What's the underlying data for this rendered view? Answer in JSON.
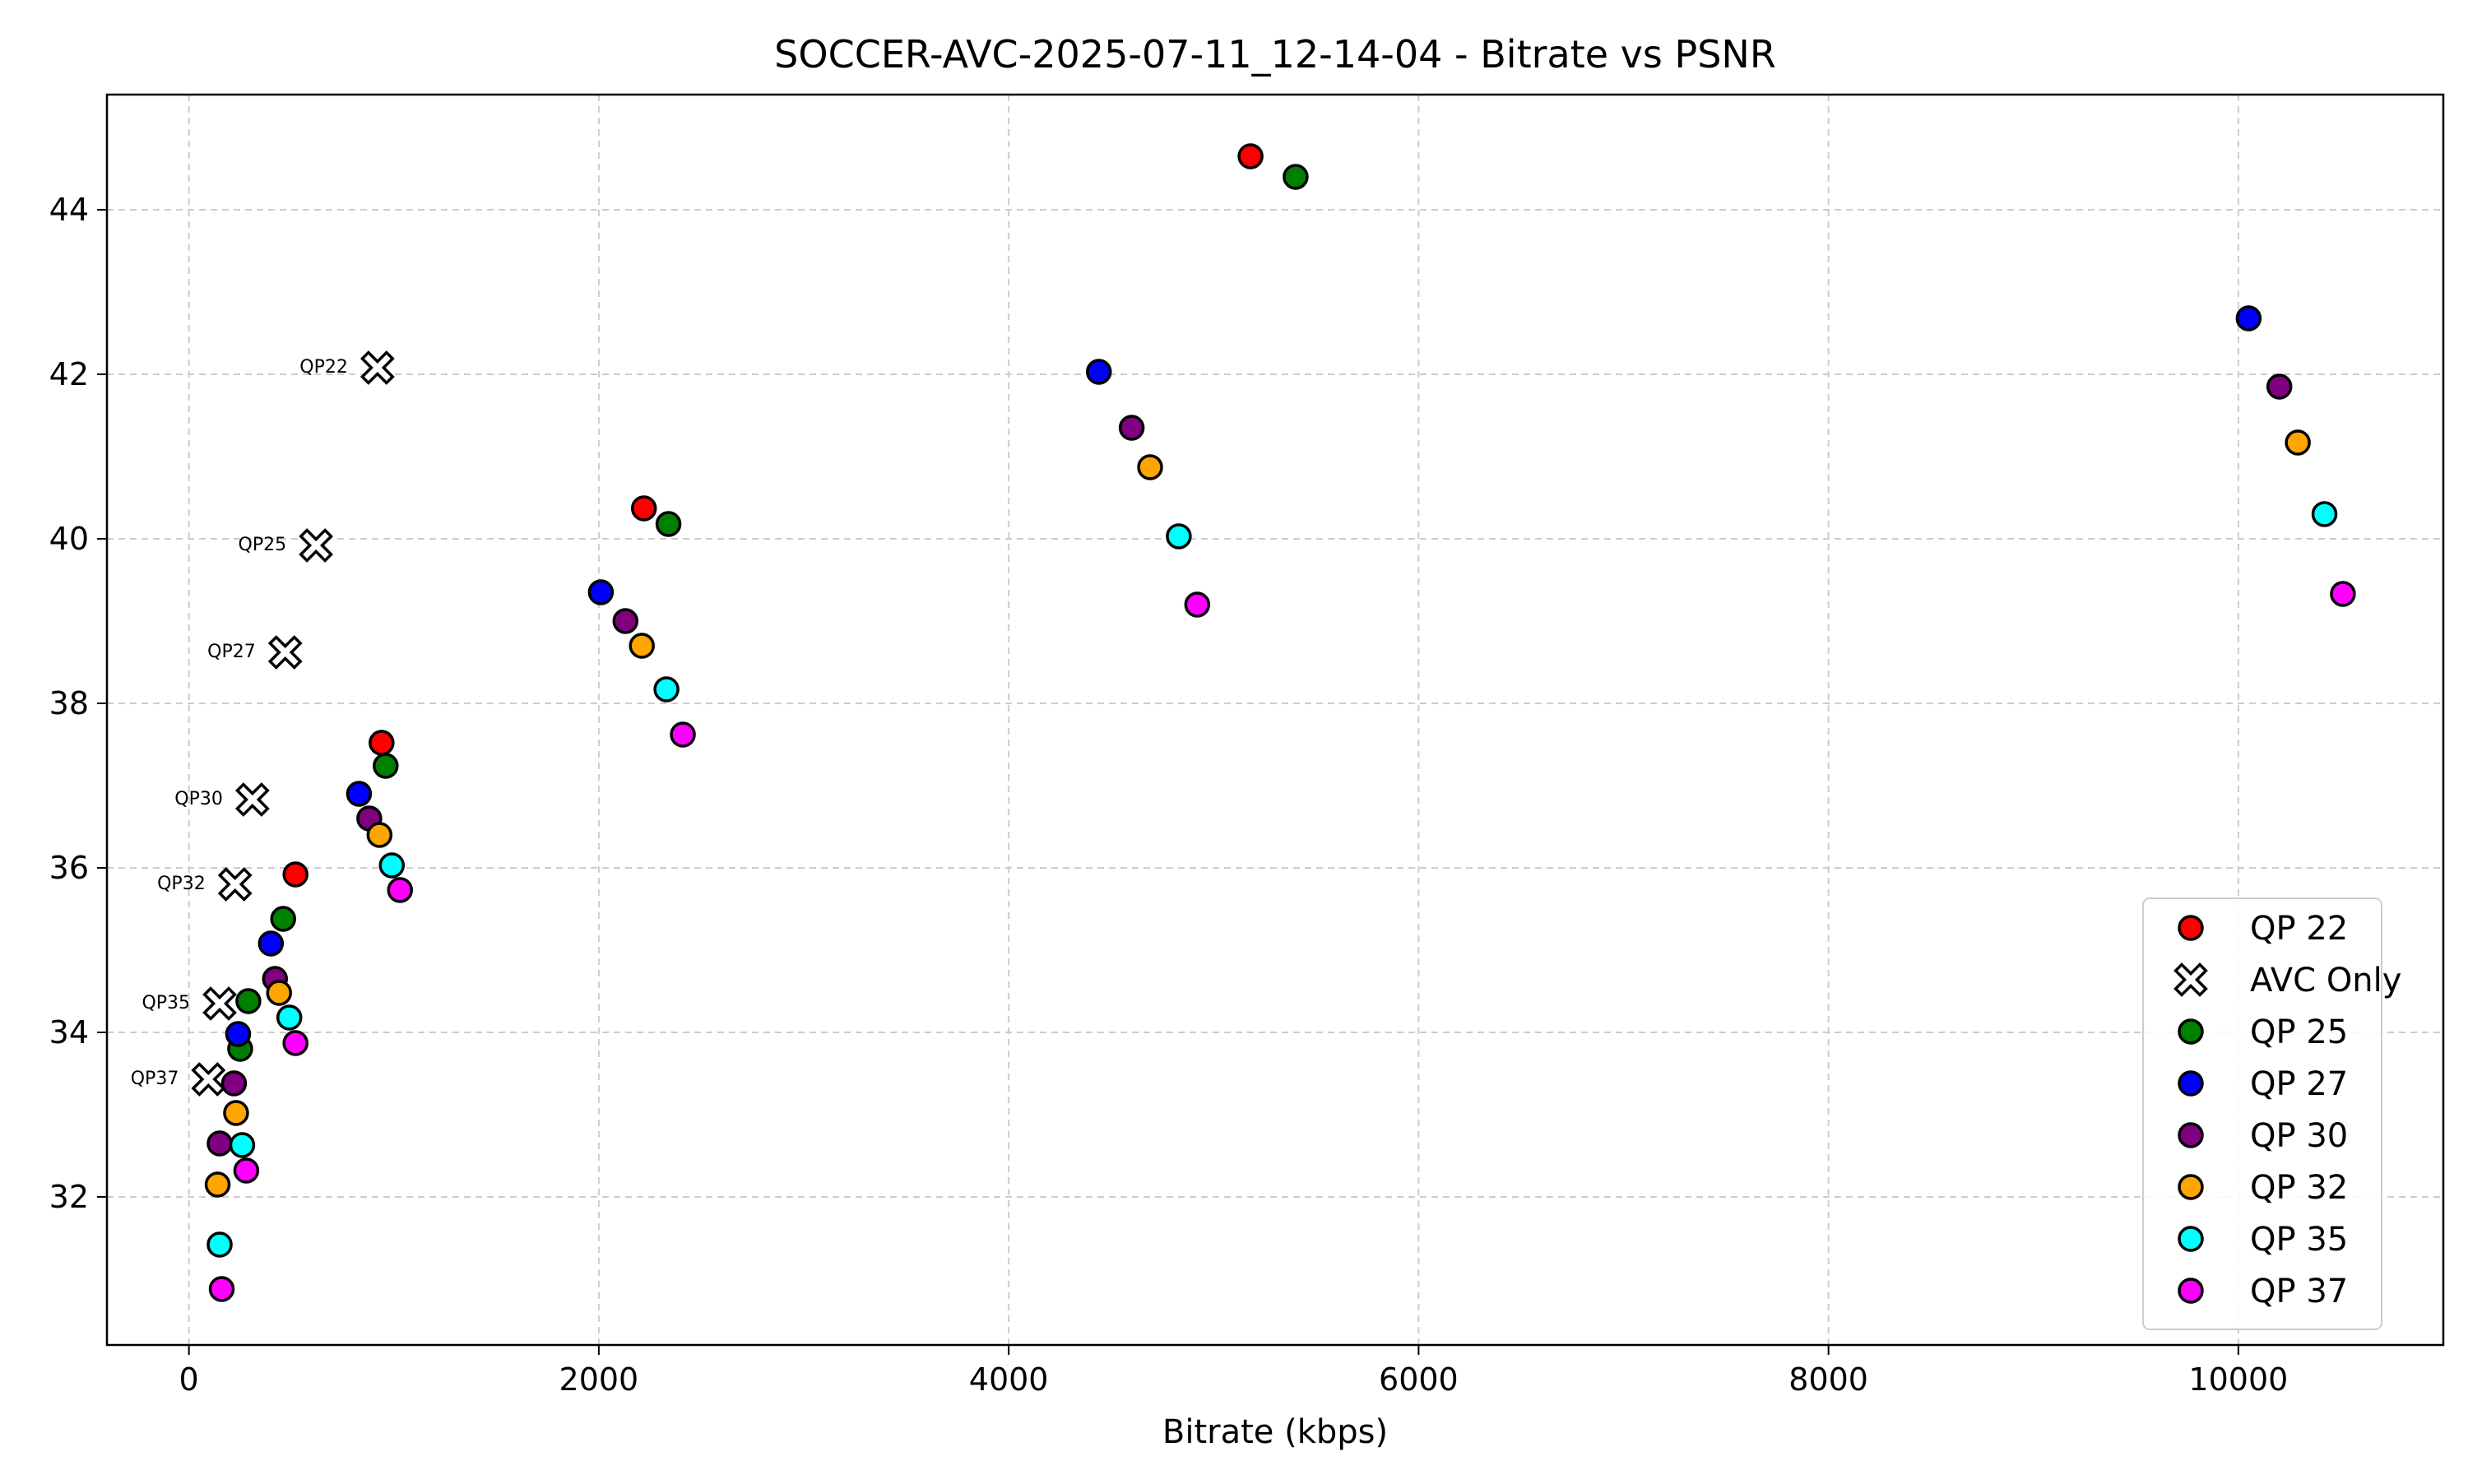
{
  "chart_data": {
    "type": "scatter",
    "title": "SOCCER-AVC-2025-07-11_12-14-04 - Bitrate vs PSNR",
    "xlabel": "Bitrate (kbps)",
    "ylabel": "",
    "xlim": [
      -400,
      11000
    ],
    "ylim": [
      30.2,
      45.4
    ],
    "xticks": [
      0,
      2000,
      4000,
      6000,
      8000,
      10000
    ],
    "yticks": [
      32,
      34,
      36,
      38,
      40,
      42,
      44
    ],
    "grid": true,
    "legend_position": "lower-right",
    "series": [
      {
        "name": "QP 22",
        "color": "#ff0000",
        "marker": "circle",
        "points": [
          [
            5180,
            44.65
          ],
          [
            2220,
            40.37
          ],
          [
            940,
            37.52
          ],
          [
            520,
            35.92
          ]
        ]
      },
      {
        "name": "AVC Only",
        "color": "#ffffff",
        "marker": "x",
        "points": [
          [
            920,
            42.08
          ],
          [
            620,
            39.92
          ],
          [
            470,
            38.62
          ],
          [
            310,
            36.83
          ],
          [
            225,
            35.8
          ],
          [
            150,
            34.35
          ],
          [
            95,
            33.43
          ]
        ],
        "annotations": [
          "QP22",
          "QP25",
          "QP27",
          "QP30",
          "QP32",
          "QP35",
          "QP37"
        ]
      },
      {
        "name": "QP 25",
        "color": "#008000",
        "marker": "circle",
        "points": [
          [
            5400,
            44.4
          ],
          [
            2340,
            40.18
          ],
          [
            960,
            37.24
          ],
          [
            460,
            35.38
          ],
          [
            290,
            34.38
          ],
          [
            250,
            33.8
          ]
        ]
      },
      {
        "name": "QP 27",
        "color": "#0000ff",
        "marker": "circle",
        "points": [
          [
            10050,
            42.68
          ],
          [
            4440,
            42.03
          ],
          [
            2010,
            39.35
          ],
          [
            830,
            36.9
          ],
          [
            400,
            35.08
          ],
          [
            240,
            33.98
          ]
        ]
      },
      {
        "name": "QP 30",
        "color": "#800080",
        "marker": "circle",
        "points": [
          [
            10200,
            41.85
          ],
          [
            4600,
            41.35
          ],
          [
            2130,
            39.0
          ],
          [
            880,
            36.6
          ],
          [
            420,
            34.65
          ],
          [
            220,
            33.38
          ],
          [
            150,
            32.65
          ]
        ]
      },
      {
        "name": "QP 32",
        "color": "#ffa500",
        "marker": "circle",
        "points": [
          [
            10290,
            41.17
          ],
          [
            4690,
            40.87
          ],
          [
            2210,
            38.7
          ],
          [
            930,
            36.4
          ],
          [
            440,
            34.48
          ],
          [
            230,
            33.02
          ],
          [
            140,
            32.15
          ]
        ]
      },
      {
        "name": "QP 35",
        "color": "#00ffff",
        "marker": "circle",
        "points": [
          [
            10420,
            40.3
          ],
          [
            4830,
            40.03
          ],
          [
            2330,
            38.17
          ],
          [
            990,
            36.03
          ],
          [
            490,
            34.18
          ],
          [
            260,
            32.63
          ],
          [
            150,
            31.42
          ]
        ]
      },
      {
        "name": "QP 37",
        "color": "#ff00ff",
        "marker": "circle",
        "points": [
          [
            10510,
            39.33
          ],
          [
            4920,
            39.2
          ],
          [
            2410,
            37.62
          ],
          [
            1030,
            35.73
          ],
          [
            520,
            33.87
          ],
          [
            280,
            32.32
          ],
          [
            160,
            30.88
          ]
        ]
      }
    ]
  }
}
